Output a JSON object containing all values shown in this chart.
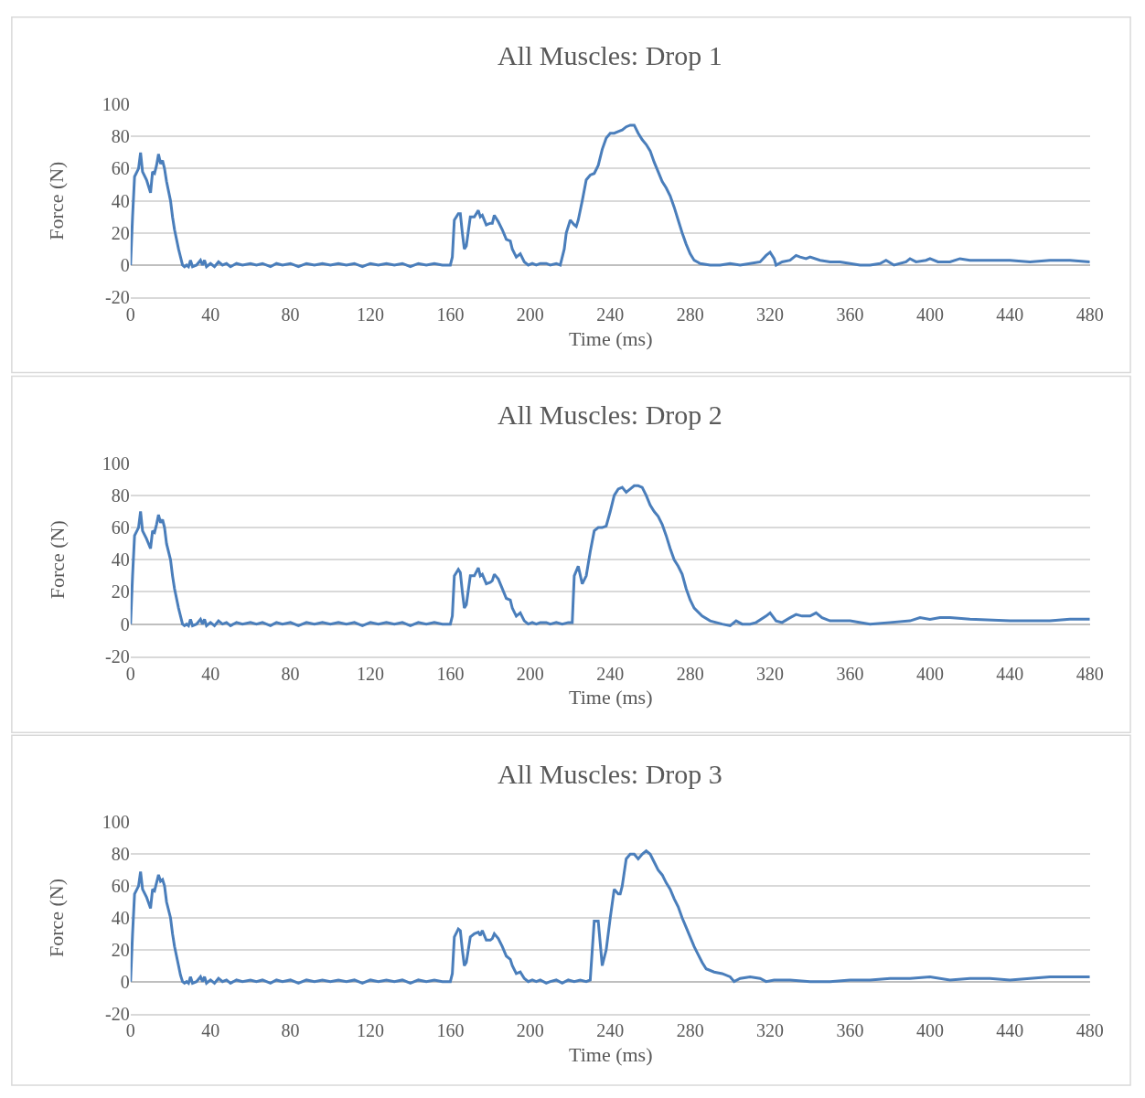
{
  "chart_data": [
    {
      "type": "line",
      "title": "All Muscles: Drop 1",
      "xlabel": "Time (ms)",
      "ylabel": "Force (N)",
      "xlim": [
        0,
        480
      ],
      "xticks": [
        0,
        40,
        80,
        120,
        160,
        200,
        240,
        280,
        320,
        360,
        400,
        440,
        480
      ],
      "ylim": [
        -20,
        100
      ],
      "yticks": [
        -20,
        0,
        20,
        40,
        60,
        80,
        100
      ],
      "grid": "y",
      "marker": "none",
      "line_style": "solid",
      "series": [
        {
          "color": "#4a7ebb",
          "x": [
            0,
            1,
            2,
            4,
            5,
            6,
            8,
            10,
            11,
            12,
            13,
            14,
            15,
            16,
            17,
            18,
            20,
            21,
            22,
            24,
            25,
            26,
            27,
            28,
            29,
            30,
            31,
            33,
            35,
            36,
            37,
            38,
            40,
            42,
            44,
            46,
            48,
            50,
            53,
            56,
            60,
            63,
            66,
            70,
            73,
            76,
            80,
            84,
            88,
            92,
            96,
            100,
            104,
            108,
            112,
            116,
            120,
            124,
            128,
            132,
            136,
            140,
            144,
            148,
            152,
            156,
            160,
            161,
            162,
            164,
            165,
            166,
            167,
            168,
            170,
            172,
            174,
            175,
            176,
            178,
            180,
            181,
            182,
            184,
            186,
            188,
            190,
            191,
            193,
            195,
            197,
            199,
            201,
            203,
            205,
            208,
            210,
            213,
            215,
            217,
            218,
            220,
            222,
            223,
            224,
            226,
            228,
            230,
            232,
            234,
            236,
            238,
            240,
            242,
            244,
            246,
            248,
            250,
            252,
            254,
            256,
            258,
            260,
            262,
            264,
            266,
            268,
            270,
            272,
            274,
            276,
            278,
            280,
            282,
            285,
            290,
            295,
            300,
            305,
            310,
            315,
            318,
            320,
            322,
            323,
            326,
            330,
            333,
            335,
            338,
            340,
            345,
            350,
            355,
            360,
            365,
            370,
            375,
            378,
            382,
            388,
            390,
            393,
            398,
            400,
            404,
            410,
            415,
            420,
            430,
            440,
            450,
            460,
            470,
            480
          ],
          "values": [
            0,
            30,
            55,
            60,
            70,
            58,
            53,
            45,
            58,
            57,
            62,
            69,
            63,
            65,
            60,
            52,
            40,
            30,
            22,
            10,
            5,
            0,
            -1,
            0,
            -1,
            3,
            -1,
            0,
            3,
            0,
            3,
            -1,
            1,
            -1,
            2,
            0,
            1,
            -1,
            1,
            0,
            1,
            0,
            1,
            -1,
            1,
            0,
            1,
            -1,
            1,
            0,
            1,
            0,
            1,
            0,
            1,
            -1,
            1,
            0,
            1,
            0,
            1,
            -1,
            1,
            0,
            1,
            0,
            0,
            5,
            28,
            32,
            32,
            20,
            10,
            12,
            30,
            30,
            34,
            30,
            31,
            25,
            26,
            26,
            31,
            27,
            22,
            16,
            15,
            10,
            5,
            7,
            2,
            0,
            1,
            0,
            1,
            1,
            0,
            1,
            0,
            10,
            20,
            28,
            25,
            24,
            28,
            40,
            53,
            56,
            57,
            62,
            72,
            79,
            82,
            82,
            83,
            84,
            86,
            87,
            87,
            82,
            78,
            75,
            71,
            64,
            58,
            52,
            48,
            43,
            36,
            28,
            20,
            13,
            7,
            3,
            1,
            0,
            0,
            1,
            0,
            1,
            2,
            6,
            8,
            4,
            0,
            2,
            3,
            6,
            5,
            4,
            5,
            3,
            2,
            2,
            1,
            0,
            0,
            1,
            3,
            0,
            2,
            4,
            2,
            3,
            4,
            2,
            2,
            4,
            3,
            3,
            3,
            2,
            3,
            3,
            2
          ]
        }
      ]
    },
    {
      "type": "line",
      "title": "All Muscles: Drop 2",
      "xlabel": "Time (ms)",
      "ylabel": "Force (N)",
      "xlim": [
        0,
        480
      ],
      "xticks": [
        0,
        40,
        80,
        120,
        160,
        200,
        240,
        280,
        320,
        360,
        400,
        440,
        480
      ],
      "ylim": [
        -20,
        100
      ],
      "yticks": [
        -20,
        0,
        20,
        40,
        60,
        80,
        100
      ],
      "grid": "y",
      "marker": "none",
      "line_style": "solid",
      "series": [
        {
          "color": "#4a7ebb",
          "x": [
            0,
            1,
            2,
            4,
            5,
            6,
            8,
            10,
            11,
            12,
            13,
            14,
            15,
            16,
            17,
            18,
            20,
            21,
            22,
            24,
            25,
            26,
            27,
            28,
            29,
            30,
            31,
            33,
            35,
            36,
            37,
            38,
            40,
            42,
            44,
            46,
            48,
            50,
            53,
            56,
            60,
            63,
            66,
            70,
            73,
            76,
            80,
            84,
            88,
            92,
            96,
            100,
            104,
            108,
            112,
            116,
            120,
            124,
            128,
            132,
            136,
            140,
            144,
            148,
            152,
            156,
            160,
            161,
            162,
            164,
            165,
            166,
            167,
            168,
            170,
            172,
            174,
            175,
            176,
            178,
            180,
            181,
            182,
            184,
            186,
            188,
            190,
            191,
            193,
            195,
            197,
            199,
            201,
            203,
            205,
            208,
            210,
            213,
            216,
            219,
            221,
            222,
            224,
            226,
            228,
            230,
            232,
            234,
            236,
            238,
            240,
            242,
            244,
            246,
            248,
            250,
            252,
            254,
            256,
            258,
            260,
            262,
            264,
            266,
            268,
            270,
            272,
            274,
            276,
            278,
            280,
            282,
            286,
            290,
            293,
            296,
            300,
            303,
            306,
            310,
            313,
            318,
            320,
            323,
            326,
            330,
            333,
            336,
            340,
            343,
            346,
            350,
            360,
            370,
            380,
            390,
            395,
            400,
            405,
            410,
            420,
            440,
            460,
            470,
            480
          ],
          "values": [
            0,
            30,
            55,
            60,
            70,
            58,
            53,
            47,
            58,
            57,
            62,
            68,
            63,
            65,
            60,
            50,
            40,
            30,
            22,
            10,
            5,
            0,
            -1,
            0,
            -1,
            3,
            -1,
            0,
            3,
            0,
            3,
            -1,
            1,
            -1,
            2,
            0,
            1,
            -1,
            1,
            0,
            1,
            0,
            1,
            -1,
            1,
            0,
            1,
            -1,
            1,
            0,
            1,
            0,
            1,
            0,
            1,
            -1,
            1,
            0,
            1,
            0,
            1,
            -1,
            1,
            0,
            1,
            0,
            0,
            5,
            30,
            34,
            32,
            20,
            10,
            12,
            30,
            30,
            35,
            30,
            31,
            25,
            26,
            27,
            31,
            28,
            22,
            16,
            15,
            10,
            5,
            7,
            2,
            0,
            1,
            0,
            1,
            1,
            0,
            1,
            0,
            1,
            1,
            30,
            36,
            25,
            30,
            45,
            58,
            60,
            60,
            61,
            70,
            80,
            84,
            85,
            82,
            84,
            86,
            86,
            85,
            80,
            74,
            70,
            67,
            62,
            55,
            47,
            40,
            36,
            31,
            22,
            15,
            10,
            5,
            2,
            1,
            0,
            -1,
            2,
            0,
            0,
            1,
            5,
            7,
            2,
            1,
            4,
            6,
            5,
            5,
            7,
            4,
            2,
            2,
            0,
            1,
            2,
            4,
            3,
            4,
            4,
            3,
            2,
            2,
            3,
            3
          ]
        }
      ]
    },
    {
      "type": "line",
      "title": "All Muscles: Drop 3",
      "xlabel": "Time (ms)",
      "ylabel": "Force (N)",
      "xlim": [
        0,
        480
      ],
      "xticks": [
        0,
        40,
        80,
        120,
        160,
        200,
        240,
        280,
        320,
        360,
        400,
        440,
        480
      ],
      "ylim": [
        -20,
        100
      ],
      "yticks": [
        -20,
        0,
        20,
        40,
        60,
        80,
        100
      ],
      "grid": "y",
      "marker": "none",
      "line_style": "solid",
      "series": [
        {
          "color": "#4a7ebb",
          "x": [
            0,
            1,
            2,
            4,
            5,
            6,
            8,
            10,
            11,
            12,
            13,
            14,
            15,
            16,
            17,
            18,
            20,
            21,
            22,
            24,
            25,
            26,
            27,
            28,
            29,
            30,
            31,
            33,
            35,
            36,
            37,
            38,
            40,
            42,
            44,
            46,
            48,
            50,
            53,
            56,
            60,
            63,
            66,
            70,
            73,
            76,
            80,
            84,
            88,
            92,
            96,
            100,
            104,
            108,
            112,
            116,
            120,
            124,
            128,
            132,
            136,
            140,
            144,
            148,
            152,
            156,
            160,
            161,
            162,
            164,
            165,
            166,
            167,
            168,
            170,
            172,
            174,
            175,
            176,
            178,
            180,
            181,
            182,
            184,
            186,
            188,
            190,
            191,
            193,
            195,
            197,
            199,
            201,
            203,
            205,
            208,
            210,
            213,
            216,
            219,
            222,
            225,
            228,
            230,
            232,
            234,
            236,
            238,
            240,
            242,
            244,
            245,
            246,
            248,
            250,
            252,
            254,
            256,
            258,
            260,
            262,
            264,
            266,
            268,
            270,
            272,
            274,
            276,
            278,
            280,
            282,
            284,
            286,
            288,
            292,
            296,
            300,
            302,
            305,
            310,
            315,
            318,
            322,
            330,
            340,
            350,
            360,
            370,
            380,
            390,
            400,
            410,
            420,
            430,
            440,
            450,
            460,
            470,
            480
          ],
          "values": [
            0,
            30,
            55,
            60,
            69,
            58,
            53,
            46,
            58,
            57,
            62,
            67,
            63,
            64,
            60,
            50,
            40,
            30,
            22,
            10,
            4,
            0,
            -1,
            0,
            -1,
            3,
            -1,
            0,
            3,
            0,
            3,
            -1,
            1,
            -1,
            2,
            0,
            1,
            -1,
            1,
            0,
            1,
            0,
            1,
            -1,
            1,
            0,
            1,
            -1,
            1,
            0,
            1,
            0,
            1,
            0,
            1,
            -1,
            1,
            0,
            1,
            0,
            1,
            -1,
            1,
            0,
            1,
            0,
            0,
            5,
            28,
            33,
            32,
            20,
            10,
            12,
            28,
            30,
            31,
            29,
            32,
            26,
            26,
            27,
            30,
            27,
            22,
            16,
            14,
            10,
            5,
            6,
            2,
            0,
            1,
            0,
            1,
            -1,
            0,
            1,
            -1,
            1,
            0,
            1,
            0,
            1,
            38,
            38,
            10,
            20,
            40,
            58,
            55,
            55,
            60,
            77,
            80,
            80,
            77,
            80,
            82,
            80,
            75,
            70,
            67,
            62,
            58,
            52,
            47,
            40,
            34,
            28,
            22,
            17,
            12,
            8,
            6,
            5,
            3,
            0,
            2,
            3,
            2,
            0,
            1,
            1,
            0,
            0,
            1,
            1,
            2,
            2,
            3,
            1,
            2,
            2,
            1,
            2,
            3,
            3,
            3
          ]
        }
      ]
    }
  ]
}
